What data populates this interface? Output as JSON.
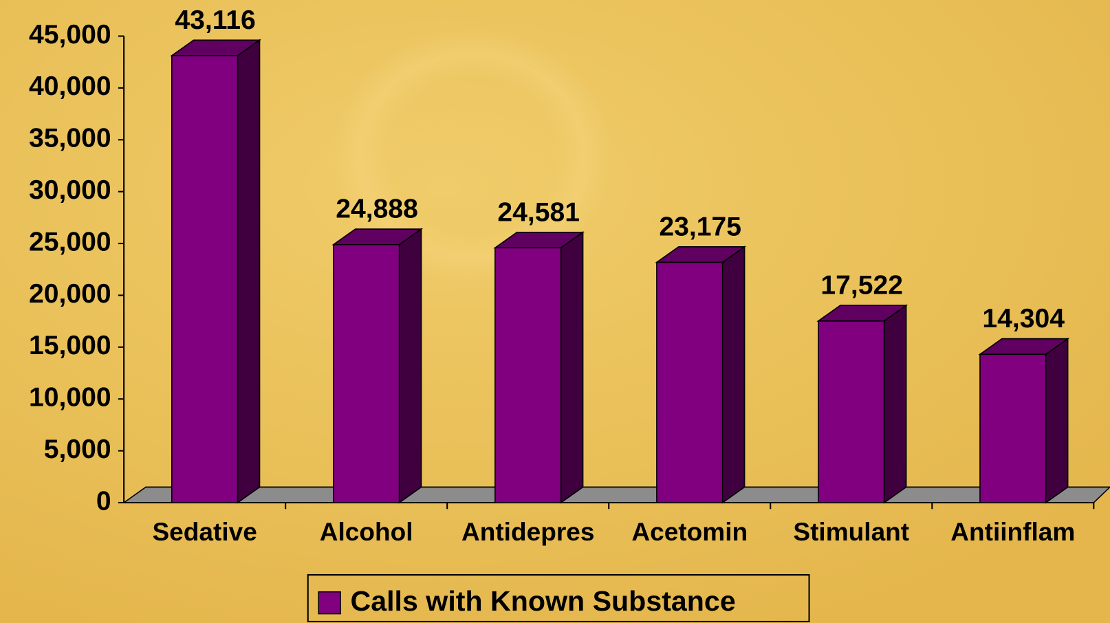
{
  "chart_data": {
    "type": "bar3d",
    "categories": [
      "Sedative",
      "Alcohol",
      "Antidepres",
      "Acetomin",
      "Stimulant",
      "Antiinflam"
    ],
    "series": [
      {
        "name": "Calls with Known Substance",
        "color": "#800080",
        "values": [
          43116,
          24888,
          24581,
          23175,
          17522,
          14304
        ],
        "value_labels": [
          "43,116",
          "24,888",
          "24,581",
          "23,175",
          "17,522",
          "14,304"
        ]
      }
    ],
    "ylim": [
      0,
      45000
    ],
    "yticks": [
      0,
      {
        "value": 5000,
        "label": "5,000"
      },
      {
        "value": 10000,
        "label": "10,000"
      },
      {
        "value": 15000,
        "label": "15,000"
      },
      {
        "value": 20000,
        "label": "20,000"
      },
      {
        "value": 25000,
        "label": "25,000"
      },
      {
        "value": 30000,
        "label": "30,000"
      },
      {
        "value": 35000,
        "label": "35,000"
      },
      {
        "value": 40000,
        "label": "40,000"
      },
      {
        "value": 45000,
        "label": "45,000"
      }
    ],
    "legend": "bottom"
  }
}
